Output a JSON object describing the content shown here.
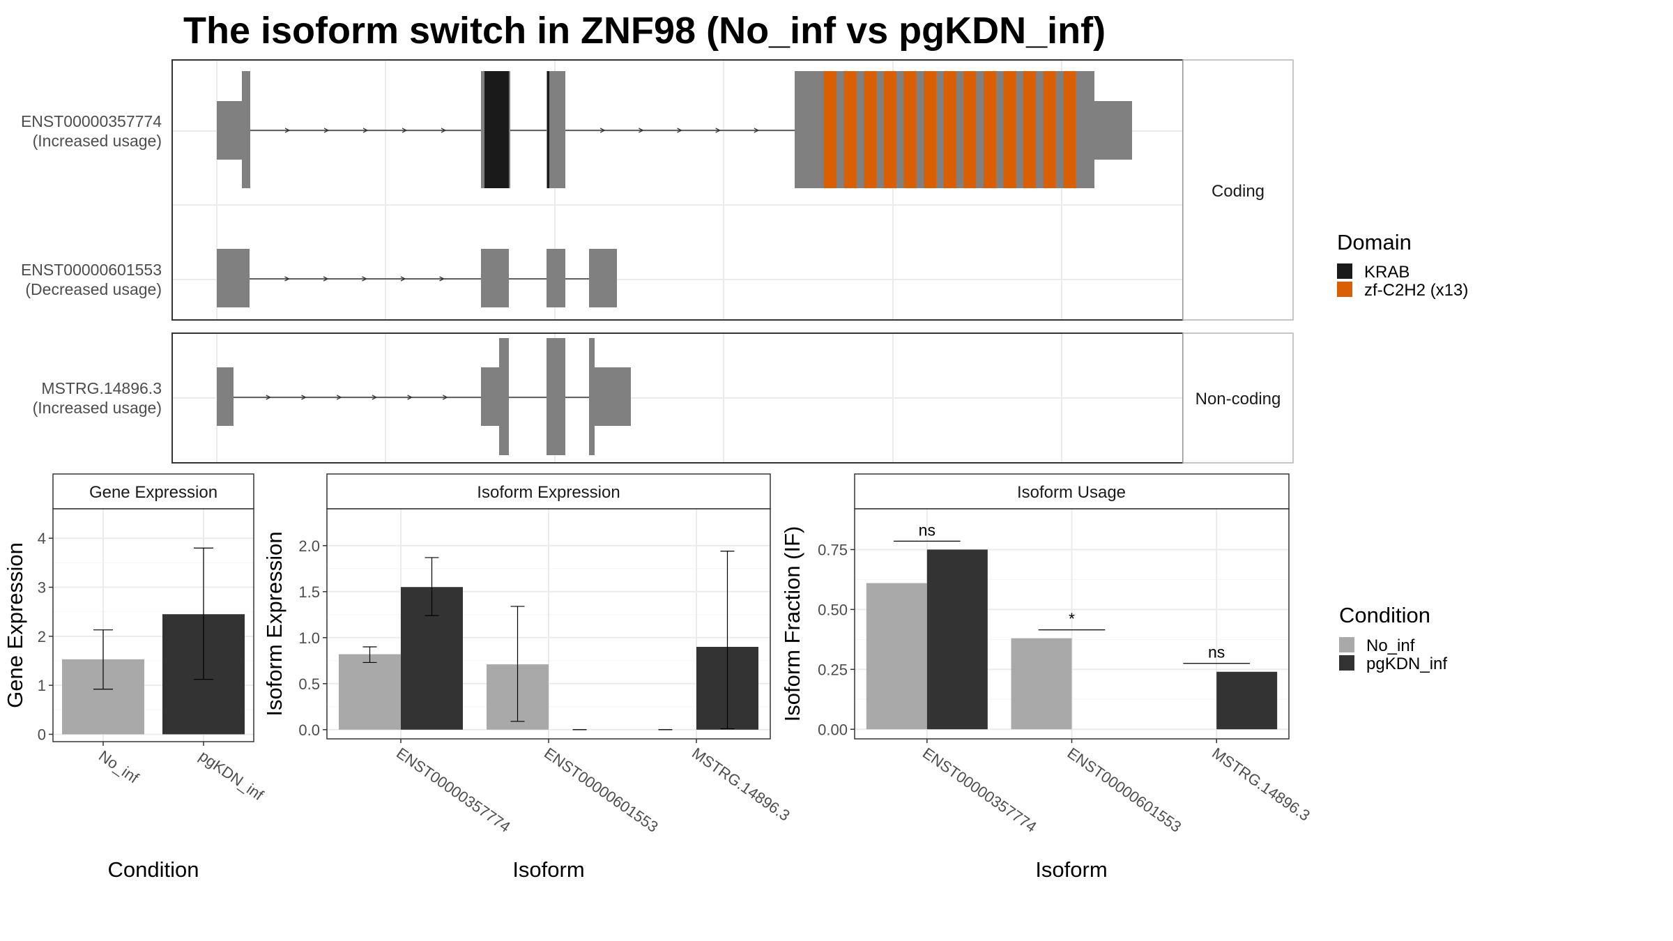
{
  "chart_data": [
    {
      "type": "transcript-structure",
      "title": "The isoform switch in ZNF98 (No_inf vs pgKDN_inf)",
      "facets": [
        {
          "label": "Coding",
          "isoforms": [
            {
              "id": "ENST00000357774",
              "usage": "(Increased usage)"
            },
            {
              "id": "ENST00000601553",
              "usage": "(Decreased usage)"
            }
          ]
        },
        {
          "label": "Non-coding",
          "isoforms": [
            {
              "id": "MSTRG.14896.3",
              "usage": "(Increased usage)"
            }
          ]
        }
      ],
      "legend": {
        "title": "Domain",
        "entries": [
          {
            "label": "KRAB",
            "color": "#1a1a1a"
          },
          {
            "label": "zf-C2H2 (x13)",
            "color": "#d95f02"
          }
        ]
      },
      "colors": {
        "exon": "#808080",
        "intron": "#333333"
      }
    },
    {
      "type": "bar",
      "title": "Gene Expression",
      "xlabel": "Condition",
      "ylabel": "Gene Expression",
      "categories": [
        "No_inf",
        "pgKDN_inf"
      ],
      "values": [
        1.53,
        2.45
      ],
      "error": [
        [
          0.92,
          2.13
        ],
        [
          1.12,
          3.8
        ]
      ],
      "ylim": [
        -0.15,
        4.6
      ],
      "yticks": [
        "0",
        "1",
        "2",
        "3",
        "4"
      ]
    },
    {
      "type": "bar",
      "title": "Isoform Expression",
      "xlabel": "Isoform",
      "ylabel": "Isoform Expression",
      "categories": [
        "ENST00000357774",
        "ENST00000601553",
        "MSTRG.14896.3"
      ],
      "series": [
        {
          "name": "No_inf",
          "values": [
            0.82,
            0.71,
            0.0
          ],
          "error": [
            [
              0.73,
              0.9
            ],
            [
              0.09,
              1.34
            ],
            [
              0.0,
              0.0
            ]
          ]
        },
        {
          "name": "pgKDN_inf",
          "values": [
            1.55,
            0.0,
            0.9
          ],
          "error": [
            [
              1.24,
              1.87
            ],
            [
              0.0,
              0.0
            ],
            [
              0.01,
              1.94
            ]
          ]
        }
      ],
      "ylim": [
        -0.1,
        2.4
      ],
      "yticks": [
        "0.0",
        "0.5",
        "1.0",
        "1.5",
        "2.0"
      ]
    },
    {
      "type": "bar",
      "title": "Isoform Usage",
      "xlabel": "Isoform",
      "ylabel": "Isoform Fraction (IF)",
      "categories": [
        "ENST00000357774",
        "ENST00000601553",
        "MSTRG.14896.3"
      ],
      "series": [
        {
          "name": "No_inf",
          "values": [
            0.61,
            0.38,
            0.0
          ]
        },
        {
          "name": "pgKDN_inf",
          "values": [
            0.75,
            0.0,
            0.24
          ]
        }
      ],
      "significance": [
        "ns",
        "*",
        "ns"
      ],
      "ylim": [
        -0.04,
        0.92
      ],
      "yticks": [
        "0.00",
        "0.25",
        "0.50",
        "0.75"
      ]
    }
  ],
  "condition_legend": {
    "title": "Condition",
    "entries": [
      {
        "label": "No_inf",
        "color": "#a9a9a9"
      },
      {
        "label": "pgKDN_inf",
        "color": "#333333"
      }
    ]
  }
}
